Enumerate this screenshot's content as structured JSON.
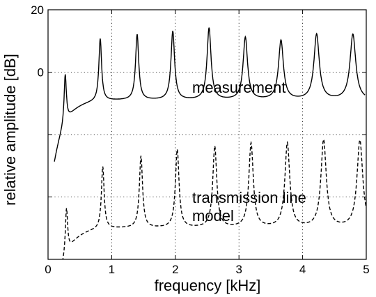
{
  "chart_data": {
    "type": "line",
    "xlabel": "frequency [kHz]",
    "ylabel": "relative amplitude [dB]",
    "xlim": [
      0,
      5
    ],
    "ylim": [
      -60,
      20
    ],
    "x_ticks": [
      0,
      1,
      2,
      3,
      4,
      5
    ],
    "x_tick_labels": [
      "0",
      "1",
      "2",
      "3",
      "4",
      "5"
    ],
    "y_ticks": [
      -40,
      -20,
      0,
      20
    ],
    "y_tick_labels": [
      "",
      "",
      "0",
      "20"
    ],
    "grid": "dotted",
    "annotations": [
      "measurement",
      "transmission line model"
    ],
    "series": [
      {
        "style": "solid",
        "baseline": -9,
        "start_level": -29,
        "end_level": 5,
        "x": [
          0.1,
          0.27,
          0.82,
          1.4,
          1.96,
          2.53,
          3.1,
          3.66,
          4.22,
          4.79,
          4.98
        ],
        "y": [
          -29,
          7,
          11,
          12,
          13,
          14,
          11,
          10,
          12,
          12,
          5
        ],
        "minima": [
          -18,
          -14,
          -8,
          -5,
          -4,
          -3,
          -2,
          -1,
          -2
        ]
      },
      {
        "style": "dashed",
        "baseline": -50,
        "start_level": -75,
        "end_level": -37,
        "x": [
          0.1,
          0.29,
          0.86,
          1.46,
          2.03,
          2.62,
          3.19,
          3.76,
          4.33,
          4.9,
          5.0
        ],
        "y": [
          -75,
          -35,
          -30,
          -27,
          -25,
          -24,
          -23,
          -23,
          -22,
          -22,
          -37
        ],
        "minima": [
          -62,
          -55,
          -51,
          -49,
          -48,
          -47,
          -46,
          -45,
          -45
        ]
      }
    ]
  }
}
